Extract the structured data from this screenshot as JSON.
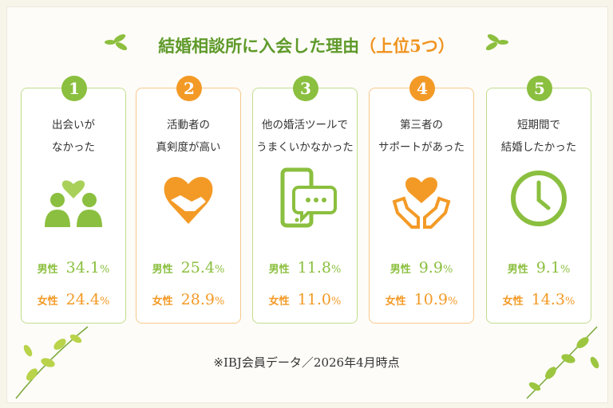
{
  "title": "結婚相談所に入会した理由",
  "title_suffix": "（上位5つ）",
  "cards": [
    {
      "number": "1",
      "lines": [
        "出会いが",
        "なかった"
      ],
      "male": {
        "label": "男性",
        "value": "34.1",
        "unit": "%"
      },
      "female": {
        "label": "女性",
        "value": "24.4",
        "unit": "%"
      }
    },
    {
      "number": "2",
      "lines": [
        "活動者の",
        "真剣度が高い"
      ],
      "male": {
        "label": "男性",
        "value": "25.4",
        "unit": "%"
      },
      "female": {
        "label": "女性",
        "value": "28.9",
        "unit": "%"
      }
    },
    {
      "number": "3",
      "lines": [
        "他の婚活ツールで",
        "うまくいかなかった"
      ],
      "male": {
        "label": "男性",
        "value": "11.8",
        "unit": "%"
      },
      "female": {
        "label": "女性",
        "value": "11.0",
        "unit": "%"
      }
    },
    {
      "number": "4",
      "lines": [
        "第三者の",
        "サポートがあった"
      ],
      "male": {
        "label": "男性",
        "value": "9.9",
        "unit": "%"
      },
      "female": {
        "label": "女性",
        "value": "10.9",
        "unit": "%"
      }
    },
    {
      "number": "5",
      "lines": [
        "短期間で",
        "結婚したかった"
      ],
      "male": {
        "label": "男性",
        "value": "9.1",
        "unit": "%"
      },
      "female": {
        "label": "女性",
        "value": "14.3",
        "unit": "%"
      }
    }
  ],
  "footnote": "※IBJ会員データ／2026年4月時点"
}
